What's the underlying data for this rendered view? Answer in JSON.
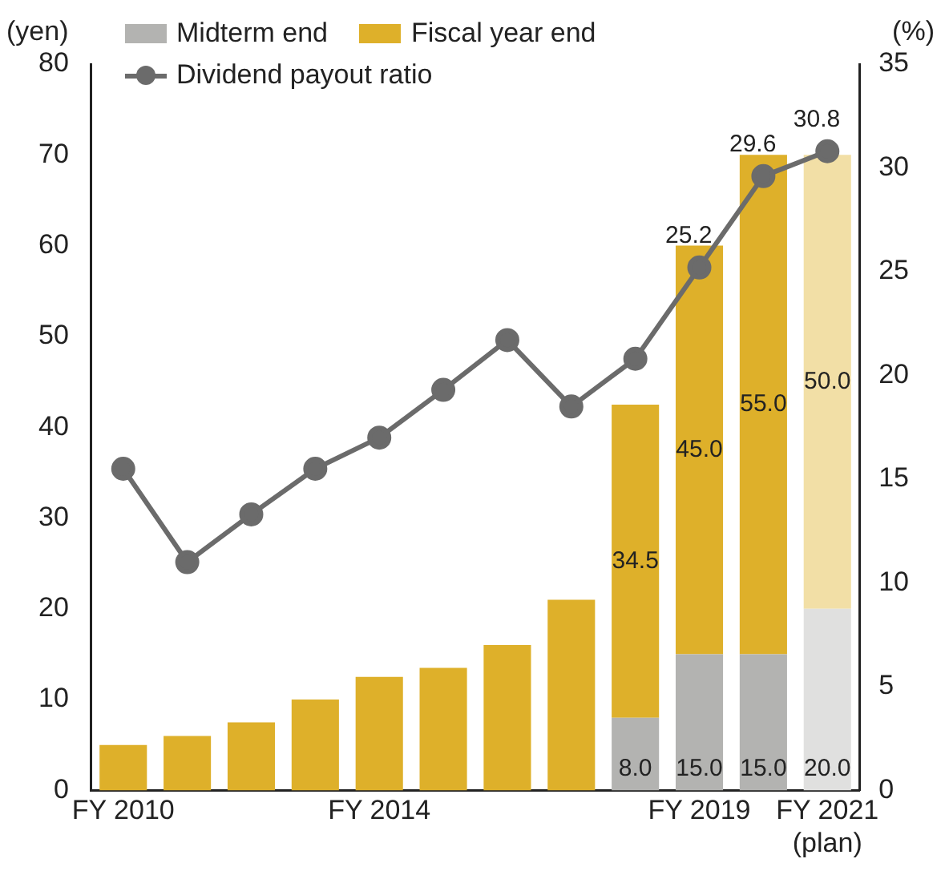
{
  "chart_data": {
    "type": "bar",
    "stacked": true,
    "ylabel": "(yen)",
    "y2label": "(%)",
    "categories": [
      "FY 2010",
      null,
      null,
      null,
      "FY 2014",
      null,
      null,
      null,
      null,
      "FY 2019",
      null,
      "FY 2021\n(plan)"
    ],
    "series": [
      {
        "name": "Midterm end",
        "colors": [
          "#b3b3b1",
          "#b3b3b1",
          "#b3b3b1",
          "#b3b3b1",
          "#b3b3b1",
          "#b3b3b1",
          "#b3b3b1",
          "#b3b3b1",
          "#b3b3b1",
          "#b3b3b1",
          "#b3b3b1",
          "#e0e0df"
        ],
        "color": "#b3b3b1",
        "values": [
          null,
          null,
          null,
          null,
          null,
          null,
          null,
          null,
          8.0,
          15.0,
          15.0,
          20.0
        ],
        "value_labels": [
          null,
          null,
          null,
          null,
          null,
          null,
          null,
          null,
          "8.0",
          "15.0",
          "15.0",
          "20.0"
        ]
      },
      {
        "name": "Fiscal year end",
        "colors": [
          "#deb02a",
          "#deb02a",
          "#deb02a",
          "#deb02a",
          "#deb02a",
          "#deb02a",
          "#deb02a",
          "#deb02a",
          "#deb02a",
          "#deb02a",
          "#deb02a",
          "#f2dfa6"
        ],
        "color": "#deb02a",
        "values": [
          5,
          6,
          7.5,
          10,
          12.5,
          13.5,
          16,
          21,
          34.5,
          45.0,
          55.0,
          50.0
        ],
        "value_labels": [
          null,
          null,
          null,
          null,
          null,
          null,
          null,
          null,
          "34.5",
          "45.0",
          "55.0",
          "50.0"
        ]
      },
      {
        "name": "Dividend payout ratio",
        "type": "line",
        "axis": "y2",
        "color": "#6b6b6b",
        "values": [
          15.5,
          11.0,
          13.3,
          15.5,
          17.0,
          19.3,
          21.7,
          18.5,
          20.8,
          25.2,
          29.6,
          30.8
        ],
        "value_labels": [
          null,
          null,
          null,
          null,
          null,
          null,
          null,
          null,
          null,
          "25.2",
          "29.6",
          "30.8"
        ]
      }
    ],
    "ylim": [
      0,
      80
    ],
    "yticks": [
      0,
      10,
      20,
      30,
      40,
      50,
      60,
      70,
      80
    ],
    "y2lim": [
      0,
      35
    ],
    "y2ticks": [
      0,
      5,
      10,
      15,
      20,
      25,
      30,
      35
    ],
    "marker": "circle",
    "grid": false,
    "legend": "top left"
  }
}
